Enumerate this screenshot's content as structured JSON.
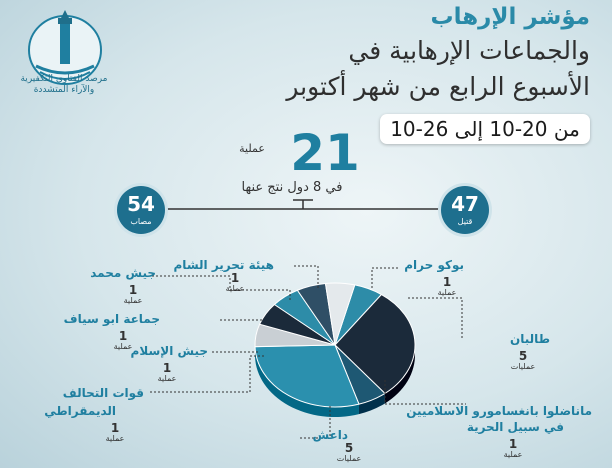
{
  "logo": {
    "org_line1": "مرصد الفتاوى التكفيرية",
    "org_line2": "والآراء المتشددة",
    "emblem_text": "دار الإفتاء المصرية"
  },
  "title": {
    "line1": "مؤشر الإرهاب",
    "line2": "والجماعات الإرهابية في",
    "line3": "الأسبوع الرابع من شهر أكتوبر"
  },
  "date_range": "من 20-10 إلى 26-10",
  "summary": {
    "operations_count": "21",
    "operations_label": "عملية",
    "operations_sub": "في 8 دول نتج عنها",
    "killed_count": "47",
    "killed_label": "قتيل",
    "injured_count": "54",
    "injured_label": "مصاب"
  },
  "colors": {
    "accent": "#1f7fa0",
    "dark": "#1b2a3a",
    "teal": "#2e8ba7",
    "navy": "#1e6f8e"
  },
  "chart_data": {
    "type": "pie",
    "title": "",
    "slices": [
      {
        "name": "بوكو حرام",
        "value": 1,
        "unit": "عملية",
        "color": "#2d8ca8"
      },
      {
        "name": "طالبان",
        "value": 5,
        "unit": "عمليات",
        "color": "#1b2a3a"
      },
      {
        "name": "ماناضلوا بانغسامورو الاسلاميين في سبيل الحرية",
        "value": 1,
        "unit": "عملية",
        "color": "#1e5873"
      },
      {
        "name": "داعش",
        "value": 5,
        "unit": "عمليات",
        "color": "#2b90ae"
      },
      {
        "name": "قوات التحالف الديمقراطي",
        "value": 1,
        "unit": "عملية",
        "color": "#c9cfd4"
      },
      {
        "name": "جيش الإسلام",
        "value": 1,
        "unit": "عملية",
        "color": "#1b2a3a"
      },
      {
        "name": "جماعة ابو سياف",
        "value": 1,
        "unit": "عملية",
        "color": "#2d8ca8"
      },
      {
        "name": "جيش محمد",
        "value": 1,
        "unit": "عملية",
        "color": "#2f4f66"
      },
      {
        "name": "هيئة تحرير الشام",
        "value": 1,
        "unit": "عملية",
        "color": "#e4e9ec"
      }
    ]
  },
  "labels_display": {
    "boko_name": "بوكو حرام",
    "boko_value": "1",
    "boko_unit": "عملية",
    "taliban_name": "طالبان",
    "taliban_value": "5",
    "taliban_unit": "عمليات",
    "milf_name1": "ماناضلوا بانغسامورو الاسلاميين",
    "milf_name2": "في سبيل الحرية",
    "milf_value": "1",
    "milf_unit": "عملية",
    "isis_name": "داعش",
    "isis_value": "5",
    "isis_unit": "عمليات",
    "adf_name1": "قوات التحالف",
    "adf_name2": "الديمقراطي",
    "adf_value": "1",
    "adf_unit": "عملية",
    "jaish_islam_name": "جيش الإسلام",
    "jaish_islam_value": "1",
    "jaish_islam_unit": "عملية",
    "abu_sayyaf_name": "جماعة ابو سياف",
    "abu_sayyaf_value": "1",
    "abu_sayyaf_unit": "عملية",
    "jaish_mohammed_name": "جيش محمد",
    "jaish_mohammed_value": "1",
    "jaish_mohammed_unit": "عملية",
    "hts_name": "هيئة تحرير الشام",
    "hts_value": "1",
    "hts_unit": "عملية"
  }
}
